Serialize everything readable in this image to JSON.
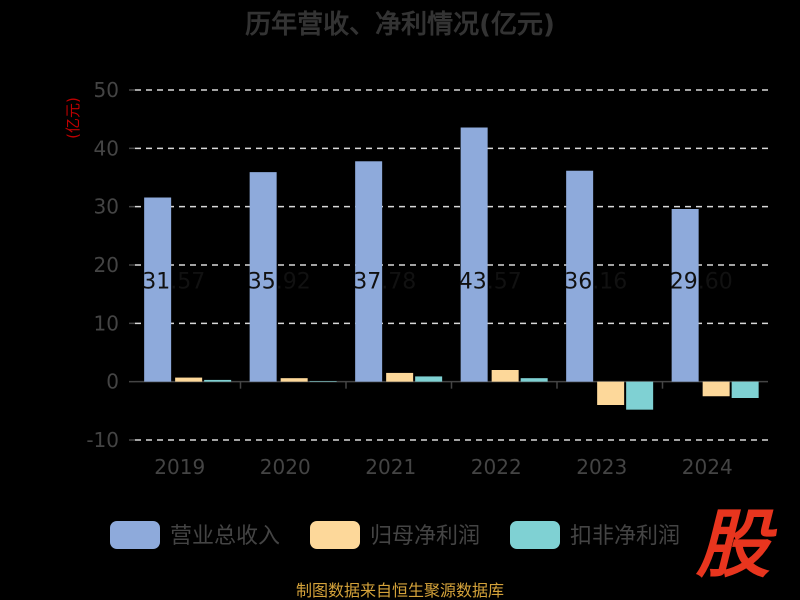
{
  "chart_data": {
    "type": "bar",
    "title": "历年营收、净利情况(亿元)",
    "unit_label": "(亿元)",
    "categories": [
      "2019",
      "2020",
      "2021",
      "2022",
      "2023",
      "2024"
    ],
    "ylim": [
      -10,
      50
    ],
    "yticks": [
      -10,
      0,
      10,
      20,
      30,
      40,
      50
    ],
    "grid": true,
    "legend_position": "bottom",
    "series": [
      {
        "name": "营业总收入",
        "color": "#8eaadb",
        "values": [
          31.57,
          35.92,
          37.78,
          43.57,
          36.16,
          29.6
        ]
      },
      {
        "name": "归母净利润",
        "color": "#fdd89a",
        "values": [
          0.7,
          0.6,
          1.5,
          2.0,
          -4.0,
          -2.5
        ]
      },
      {
        "name": "扣非净利润",
        "color": "#7fd1d3",
        "values": [
          0.3,
          0.1,
          0.9,
          0.6,
          -4.8,
          -2.8
        ]
      }
    ],
    "data_labels": [
      "31.57",
      "35.92",
      "37.78",
      "43.57",
      "36.16",
      "29.60"
    ]
  },
  "source_text": "制图数据来自恒生聚源数据库",
  "logo_text": "股"
}
